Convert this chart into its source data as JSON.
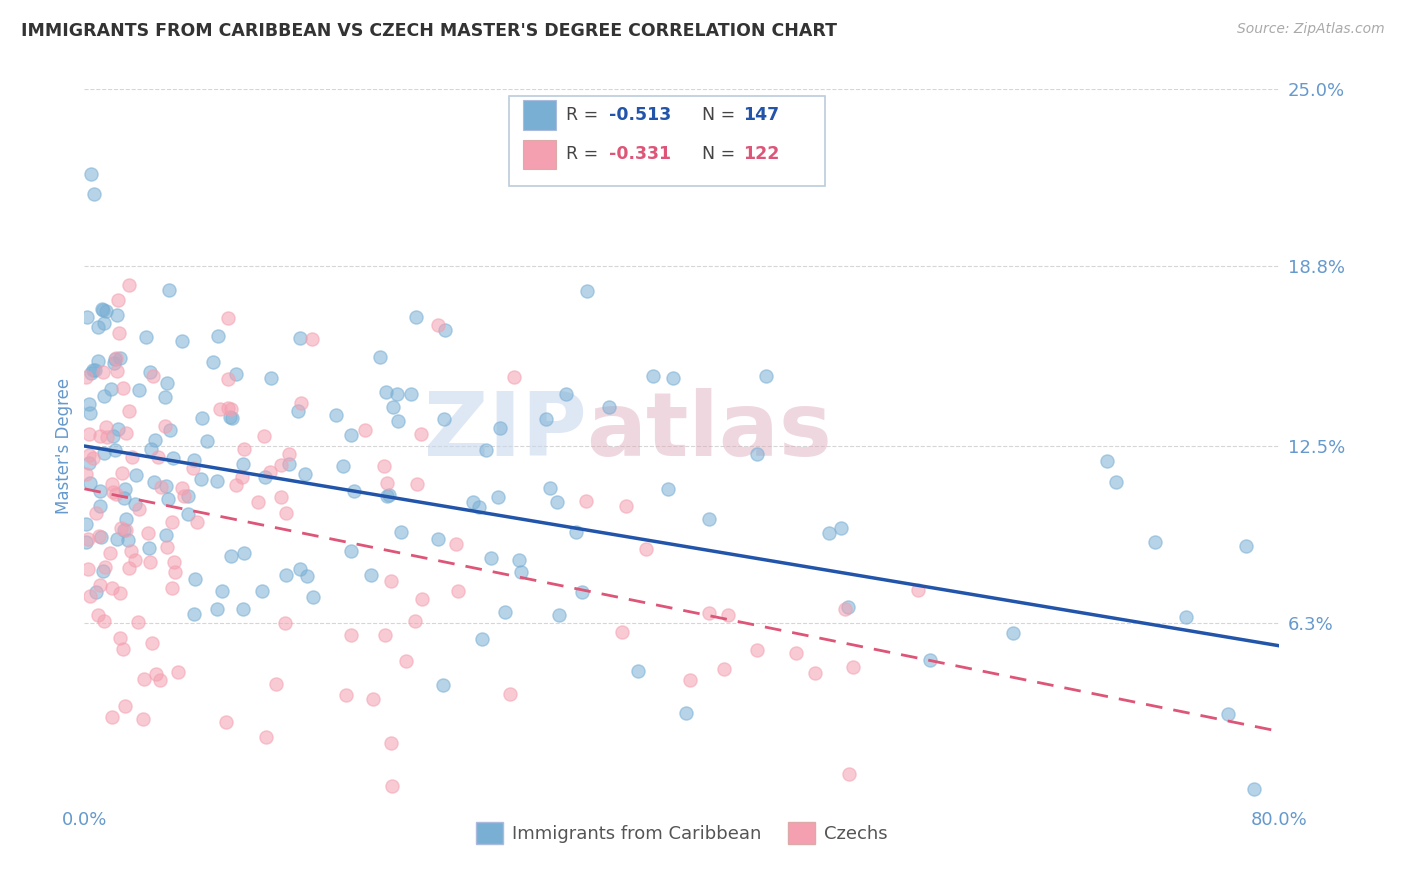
{
  "title": "IMMIGRANTS FROM CARIBBEAN VS CZECH MASTER'S DEGREE CORRELATION CHART",
  "source_text": "Source: ZipAtlas.com",
  "ylabel": "Master's Degree",
  "xlim": [
    0.0,
    80.0
  ],
  "ylim": [
    0.0,
    25.0
  ],
  "ytick_values": [
    0.0,
    6.3,
    12.5,
    18.8,
    25.0
  ],
  "ytick_labels": [
    "",
    "6.3%",
    "12.5%",
    "18.8%",
    "25.0%"
  ],
  "grid_color": "#cccccc",
  "background_color": "#ffffff",
  "blue_color": "#7aafd4",
  "pink_color": "#f4a0b0",
  "blue_line_color": "#2255aa",
  "pink_line_color": "#dd5577",
  "R_blue": -0.513,
  "N_blue": 147,
  "R_pink": -0.331,
  "N_pink": 122,
  "legend_label_blue": "Immigrants from Caribbean",
  "legend_label_pink": "Czechs",
  "watermark_zip": "ZIP",
  "watermark_atlas": "atlas",
  "title_color": "#333333",
  "tick_color": "#6699cc",
  "blue_trend_start_y": 12.5,
  "blue_trend_end_y": 5.5,
  "pink_trend_start_y": 11.0,
  "pink_trend_end_y": 2.5,
  "seed_blue": 42,
  "seed_pink": 7
}
